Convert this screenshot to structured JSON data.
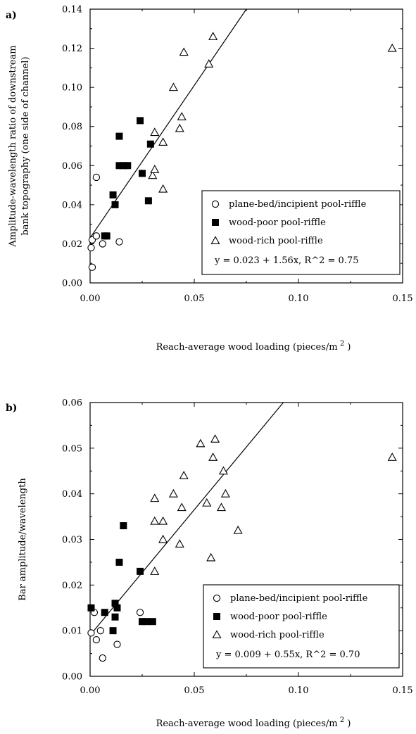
{
  "chart_data": [
    {
      "type": "scatter",
      "panel_label": "a)",
      "xlabel": "Reach-average wood loading (pieces/m",
      "xlabel_sup": "2",
      "xlabel_end": " )",
      "ylabel_lines": [
        "Amplitude-wavelength ratio of downstream",
        "bank topography (one side of channel)"
      ],
      "xlim": [
        0,
        0.15
      ],
      "ylim": [
        0,
        0.14
      ],
      "x_ticks": [
        {
          "value": 0,
          "label": "0.00"
        },
        {
          "value": 0.05,
          "label": "0.05"
        },
        {
          "value": 0.1,
          "label": "0.10"
        },
        {
          "value": 0.15,
          "label": "0.15"
        }
      ],
      "y_ticks": [
        {
          "value": 0,
          "label": "0.00"
        },
        {
          "value": 0.02,
          "label": "0.02"
        },
        {
          "value": 0.04,
          "label": "0.04"
        },
        {
          "value": 0.06,
          "label": "0.06"
        },
        {
          "value": 0.08,
          "label": "0.08"
        },
        {
          "value": 0.1,
          "label": "0.10"
        },
        {
          "value": 0.12,
          "label": "0.12"
        },
        {
          "value": 0.14,
          "label": "0.14"
        }
      ],
      "legend_position": "bottom-right",
      "fit_label": "y = 0.023 + 1.56x,  R^2 = 0.75",
      "fit": {
        "intercept": 0.023,
        "slope": 1.56
      },
      "series": [
        {
          "name": "plane-bed/incipient pool-riffle",
          "marker": "circle",
          "points": [
            [
              0.001,
              0.008
            ],
            [
              0.0005,
              0.018
            ],
            [
              0.001,
              0.022
            ],
            [
              0.003,
              0.024
            ],
            [
              0.003,
              0.054
            ],
            [
              0.006,
              0.02
            ],
            [
              0.014,
              0.021
            ]
          ]
        },
        {
          "name": "wood-poor pool-riffle",
          "marker": "square",
          "points": [
            [
              0.008,
              0.024
            ],
            [
              0.007,
              0.024
            ],
            [
              0.011,
              0.045
            ],
            [
              0.012,
              0.04
            ],
            [
              0.014,
              0.06
            ],
            [
              0.014,
              0.075
            ],
            [
              0.016,
              0.06
            ],
            [
              0.018,
              0.06
            ],
            [
              0.024,
              0.083
            ],
            [
              0.025,
              0.056
            ],
            [
              0.028,
              0.042
            ],
            [
              0.029,
              0.071
            ]
          ]
        },
        {
          "name": "wood-rich pool-riffle",
          "marker": "triangle",
          "points": [
            [
              0.03,
              0.055
            ],
            [
              0.031,
              0.058
            ],
            [
              0.031,
              0.077
            ],
            [
              0.035,
              0.072
            ],
            [
              0.035,
              0.048
            ],
            [
              0.04,
              0.1
            ],
            [
              0.043,
              0.079
            ],
            [
              0.044,
              0.085
            ],
            [
              0.045,
              0.118
            ],
            [
              0.057,
              0.112
            ],
            [
              0.059,
              0.126
            ],
            [
              0.145,
              0.12
            ]
          ]
        }
      ]
    },
    {
      "type": "scatter",
      "panel_label": "b)",
      "xlabel": "Reach-average wood loading (pieces/m",
      "xlabel_sup": "2",
      "xlabel_end": " )",
      "ylabel_lines": [
        "Bar amplitude/wavelength"
      ],
      "xlim": [
        0,
        0.15
      ],
      "ylim": [
        0,
        0.06
      ],
      "x_ticks": [
        {
          "value": 0,
          "label": "0.00"
        },
        {
          "value": 0.05,
          "label": "0.05"
        },
        {
          "value": 0.1,
          "label": "0.10"
        },
        {
          "value": 0.15,
          "label": "0.15"
        }
      ],
      "y_ticks": [
        {
          "value": 0,
          "label": "0.00"
        },
        {
          "value": 0.01,
          "label": "0.01"
        },
        {
          "value": 0.02,
          "label": "0.02"
        },
        {
          "value": 0.03,
          "label": "0.03"
        },
        {
          "value": 0.04,
          "label": "0.04"
        },
        {
          "value": 0.05,
          "label": "0.05"
        },
        {
          "value": 0.06,
          "label": "0.06"
        }
      ],
      "legend_position": "bottom-right",
      "fit_label": "y = 0.009 + 0.55x,  R^2 = 0.70",
      "fit": {
        "intercept": 0.009,
        "slope": 0.55
      },
      "series": [
        {
          "name": "plane-bed/incipient pool-riffle",
          "marker": "circle",
          "points": [
            [
              0.0005,
              0.0095
            ],
            [
              0.002,
              0.014
            ],
            [
              0.003,
              0.008
            ],
            [
              0.005,
              0.01
            ],
            [
              0.006,
              0.004
            ],
            [
              0.013,
              0.007
            ],
            [
              0.024,
              0.014
            ]
          ]
        },
        {
          "name": "wood-poor pool-riffle",
          "marker": "square",
          "points": [
            [
              0.0005,
              0.015
            ],
            [
              0.007,
              0.014
            ],
            [
              0.011,
              0.01
            ],
            [
              0.012,
              0.013
            ],
            [
              0.012,
              0.016
            ],
            [
              0.013,
              0.015
            ],
            [
              0.014,
              0.025
            ],
            [
              0.016,
              0.033
            ],
            [
              0.024,
              0.023
            ],
            [
              0.025,
              0.012
            ],
            [
              0.027,
              0.012
            ],
            [
              0.03,
              0.012
            ]
          ]
        },
        {
          "name": "wood-rich pool-riffle",
          "marker": "triangle",
          "points": [
            [
              0.031,
              0.023
            ],
            [
              0.031,
              0.034
            ],
            [
              0.031,
              0.039
            ],
            [
              0.035,
              0.034
            ],
            [
              0.035,
              0.03
            ],
            [
              0.04,
              0.04
            ],
            [
              0.043,
              0.029
            ],
            [
              0.044,
              0.037
            ],
            [
              0.045,
              0.044
            ],
            [
              0.053,
              0.051
            ],
            [
              0.056,
              0.038
            ],
            [
              0.058,
              0.026
            ],
            [
              0.059,
              0.048
            ],
            [
              0.06,
              0.052
            ],
            [
              0.063,
              0.037
            ],
            [
              0.064,
              0.045
            ],
            [
              0.065,
              0.04
            ],
            [
              0.071,
              0.032
            ],
            [
              0.145,
              0.048
            ]
          ]
        }
      ]
    }
  ]
}
